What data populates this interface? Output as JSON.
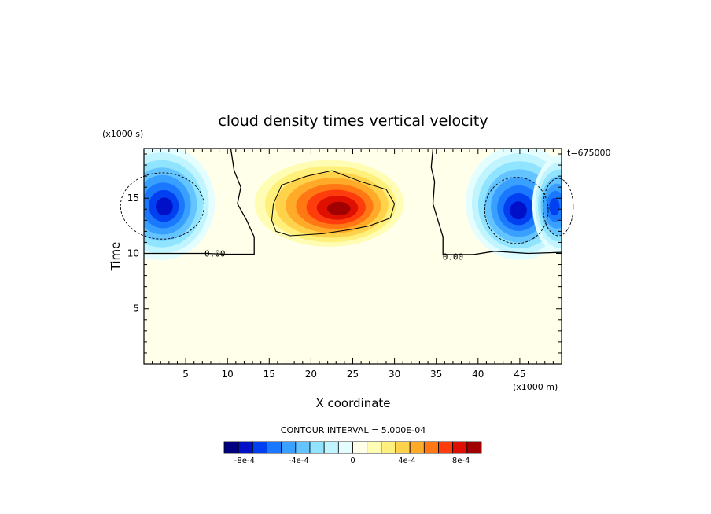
{
  "chart_data": {
    "type": "heatmap",
    "title": "cloud density times vertical velocity",
    "xlabel": "X coordinate",
    "ylabel": "Time",
    "x_unit_label": "(x1000 m)",
    "y_unit_label": "(x1000 s)",
    "time_label": "t=675000",
    "xlim": [
      0,
      50
    ],
    "ylim": [
      0,
      19.5
    ],
    "x_ticks": [
      5,
      10,
      15,
      20,
      25,
      30,
      35,
      40,
      45
    ],
    "y_ticks": [
      5,
      10,
      15
    ],
    "x_tick_labels": [
      "5",
      "10",
      "15",
      "20",
      "25",
      "30",
      "35",
      "40",
      "45"
    ],
    "y_tick_labels": [
      "5",
      "10",
      "15"
    ],
    "zero_contour_labels": [
      {
        "text": "0.00",
        "x": 8.5,
        "y": 10.0
      },
      {
        "text": "0.00",
        "x": 37.0,
        "y": 9.7
      }
    ],
    "features": [
      {
        "kind": "updraft",
        "x": 23.5,
        "y": 14.0,
        "peak": 0.00095
      },
      {
        "kind": "downdraft",
        "x": 2.5,
        "y": 14.2,
        "peak": -0.00085
      },
      {
        "kind": "downdraft",
        "x": 44.8,
        "y": 13.8,
        "peak": -0.0008
      },
      {
        "kind": "downdraft",
        "x": 49.0,
        "y": 14.2,
        "peak": -0.0007
      }
    ],
    "colorbar": {
      "title": "CONTOUR INTERVAL = 5.000E-04",
      "labels": [
        "-8e-4",
        "-4e-4",
        "0",
        "4e-4",
        "8e-4"
      ],
      "label_values": [
        -0.0008,
        -0.0004,
        0,
        0.0004,
        0.0008
      ],
      "min": -0.00095,
      "max": 0.00095,
      "colors": [
        "#000080",
        "#0010c8",
        "#0040f0",
        "#1a78ff",
        "#3aa0ff",
        "#64c4ff",
        "#90e4ff",
        "#c0f4ff",
        "#e4feff",
        "#ffffea",
        "#fffcb4",
        "#fff07c",
        "#ffd24c",
        "#ffaa28",
        "#ff7814",
        "#ff3c0c",
        "#e01000",
        "#a00000"
      ]
    }
  }
}
